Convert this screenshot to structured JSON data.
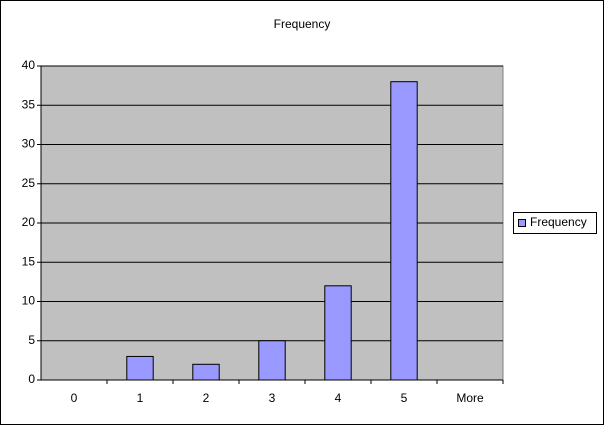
{
  "chart_data": {
    "type": "bar",
    "title": "Frequency",
    "categories": [
      "0",
      "1",
      "2",
      "3",
      "4",
      "5",
      "More"
    ],
    "series": [
      {
        "name": "Frequency",
        "color": "#9999ff",
        "values": [
          0,
          3,
          2,
          5,
          12,
          38,
          0
        ]
      }
    ],
    "ylim": [
      0,
      40
    ],
    "yticks": [
      0,
      5,
      10,
      15,
      20,
      25,
      30,
      35,
      40
    ],
    "grid": true,
    "legend": "right"
  }
}
